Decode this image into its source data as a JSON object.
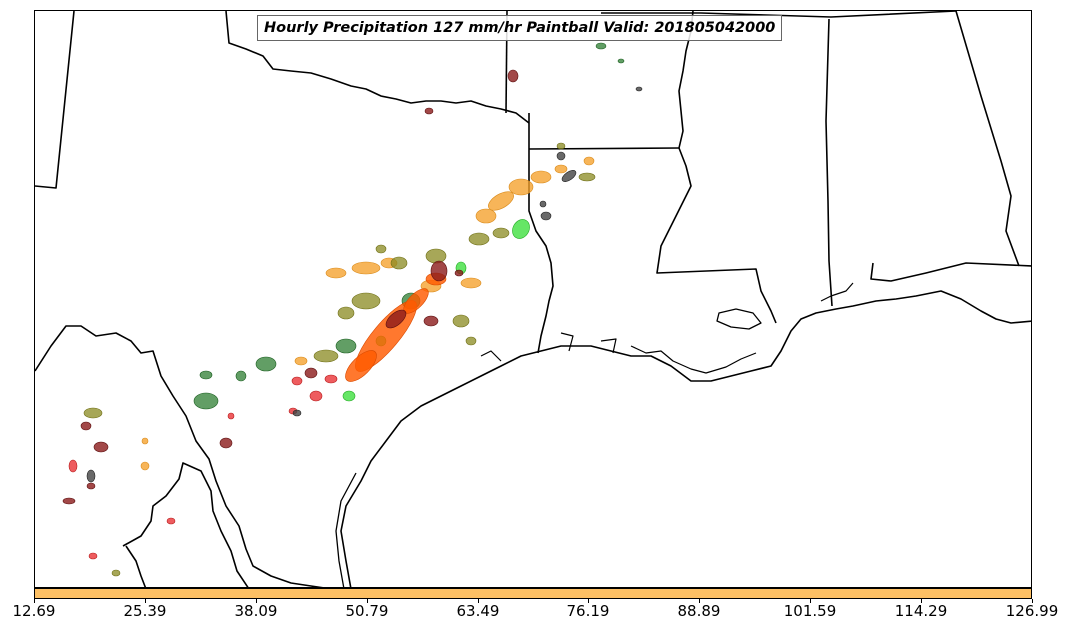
{
  "title": "Hourly Precipitation 127 mm/hr Paintball Valid: 201805042000",
  "colorbar": {
    "color": "#fdc064",
    "ticks": [
      "12.69",
      "25.39",
      "38.09",
      "50.79",
      "63.49",
      "76.19",
      "88.89",
      "101.59",
      "114.29",
      "126.99"
    ]
  },
  "colors": {
    "orange": "#f5a02a",
    "orange_red": "#ff5a00",
    "red": "#e8262a",
    "dark_red": "#8b1a1a",
    "olive": "#8a8a20",
    "dark_green": "#2e7d32",
    "bright_green": "#33dd33",
    "gray": "#444444",
    "boundary": "#000000"
  }
}
